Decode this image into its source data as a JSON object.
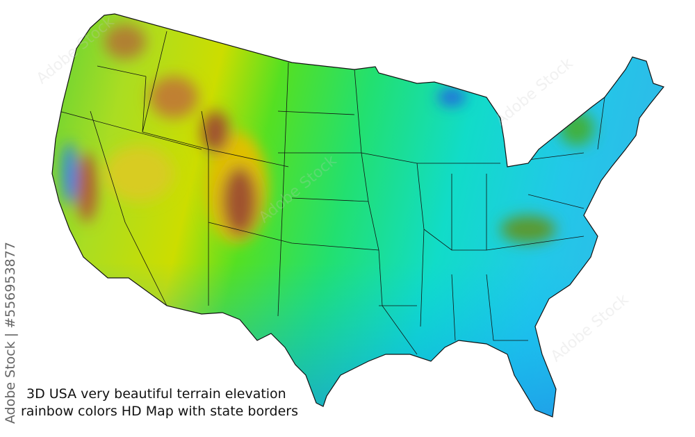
{
  "caption": {
    "line1": "3D USA very beautiful terrain elevation",
    "line2": "rainbow colors HD Map with state borders"
  },
  "watermark": {
    "vertical_text": "Adobe Stock | #556953877",
    "tile_text": "Adobe Stock"
  },
  "map": {
    "subject": "Contiguous United States elevation",
    "colors": {
      "low": "#1e88e5",
      "coast": "#00d4e0",
      "plains": "#33dd33",
      "mid": "#aaee00",
      "high": "#e8d000",
      "peak": "#8b4513",
      "border": "#111111"
    }
  }
}
